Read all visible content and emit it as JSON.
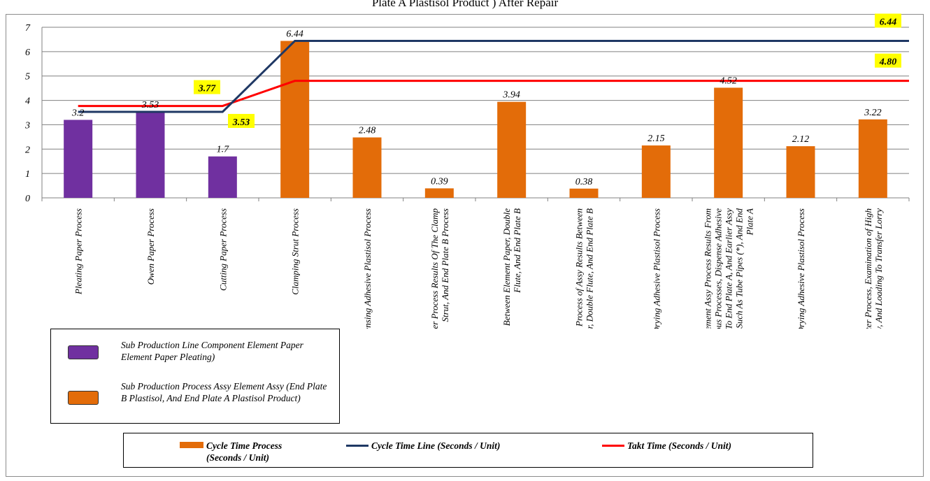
{
  "title": "Plate A Plastisol Product ) After Repair",
  "chart_data": {
    "type": "bar",
    "categories": [
      "Pleating Paper Process",
      "Owen Paper Process",
      "Cutting Paper Process",
      "Clamping Strut Process",
      "Dispensing Adhesive Plastisol Process",
      "Transfer Paper Process Results Of The Clamp Strut, And End Plate B Process",
      "The Assy Process Between Element Paper, Double Flute, And End Plate B",
      "The Transfer Process of Assy Results Between Element Paper, Double Flute, And End Plate B",
      "Owen Drying Adhesive Plastisol Process",
      "The Loading Element Assy Process Results From Previous Processes, Dispense Adhesive Plastisol To End Plate A, And Earlier Assy Results Are Such As Tube Pipes (*), And End Plate A",
      "Owen Drying Adhesive Plastisol Process",
      "Unloading Filter Process, Examination of High Element Assy, And Loading To Transfer Lorry"
    ],
    "values": [
      3.2,
      3.53,
      1.7,
      6.44,
      2.48,
      0.39,
      3.94,
      0.38,
      2.15,
      4.52,
      2.12,
      3.22
    ],
    "value_labels": [
      "3.2",
      "3.53",
      "1.7",
      "6.44",
      "2.48",
      "0.39",
      "3.94",
      "0.38",
      "2.15",
      "4.52",
      "2.12",
      "3.22"
    ],
    "bar_groups": [
      "purple",
      "purple",
      "purple",
      "orange",
      "orange",
      "orange",
      "orange",
      "orange",
      "orange",
      "orange",
      "orange",
      "orange"
    ],
    "colors": {
      "purple": "#7030a0",
      "orange": "#e36c09",
      "cycle_line": "#1f3864",
      "takt_line": "#ff0000",
      "highlight": "#ffff00",
      "grid": "#808080"
    },
    "cycle_time_line": {
      "name": "Cycle Time Line (Seconds / Unit)",
      "before": 3.53,
      "after": 6.44
    },
    "takt_time_line": {
      "name": "Takt Time (Seconds / Unit)",
      "before": 3.77,
      "after": 4.8
    },
    "highlight_labels": [
      "3.77",
      "3.53",
      "6.44",
      "4.80"
    ],
    "ylim": [
      0,
      7
    ],
    "yticks": [
      "0",
      "1",
      "2",
      "3",
      "4",
      "5",
      "6",
      "7"
    ],
    "grid": true,
    "legend_groups": [
      {
        "color": "purple",
        "label": "Sub Production Line Component Element Paper Element Paper Pleating)"
      },
      {
        "color": "orange",
        "label": "Sub Production Process Assy Element Assy (End Plate B Plastisol, And End Plate A Plastisol Product)"
      }
    ],
    "legend_series": [
      {
        "kind": "bar",
        "label": "Cycle Time Process (Seconds / Unit)"
      },
      {
        "kind": "line",
        "label": "Cycle Time Line (Seconds / Unit)"
      },
      {
        "kind": "line",
        "label": "Takt Time (Seconds / Unit)"
      }
    ]
  }
}
